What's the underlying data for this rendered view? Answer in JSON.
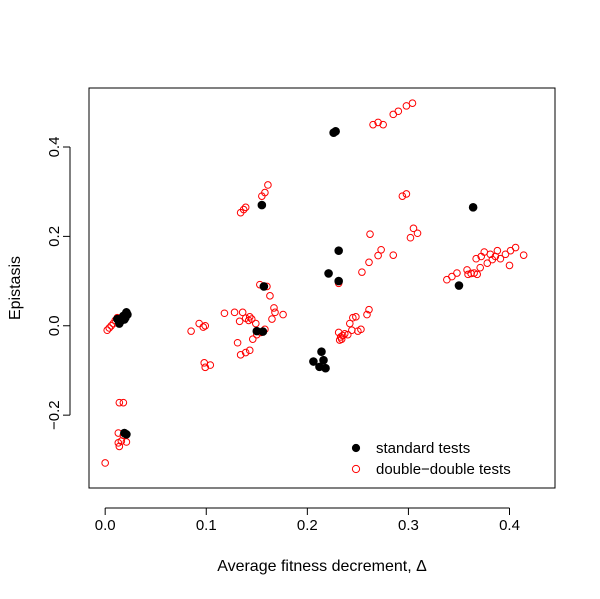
{
  "chart_data": {
    "type": "scatter",
    "title": "",
    "xlabel": "Average fitness decrement, Δ",
    "ylabel": "Epistasis",
    "xlim": [
      -0.016,
      0.445
    ],
    "ylim": [
      -0.363,
      0.532
    ],
    "xticks": [
      0.0,
      0.1,
      0.2,
      0.3,
      0.4
    ],
    "xtick_labels": [
      "0.0",
      "0.1",
      "0.2",
      "0.3",
      "0.4"
    ],
    "yticks": [
      -0.2,
      0.0,
      0.2,
      0.4
    ],
    "ytick_labels": [
      "−0.2",
      "0.0",
      "0.2",
      "0.4"
    ],
    "grid": false,
    "legend_position": "bottom-right",
    "series": [
      {
        "name": "standard tests",
        "marker": "filled-circle",
        "color": "#000000",
        "points": [
          [
            0.012,
            0.015
          ],
          [
            0.014,
            0.005
          ],
          [
            0.016,
            0.012
          ],
          [
            0.018,
            0.022
          ],
          [
            0.02,
            0.018
          ],
          [
            0.021,
            0.03
          ],
          [
            0.022,
            0.025
          ],
          [
            0.015,
            0.01
          ],
          [
            0.019,
            0.014
          ],
          [
            0.019,
            -0.24
          ],
          [
            0.021,
            -0.243
          ],
          [
            0.155,
            0.27
          ],
          [
            0.157,
            0.088
          ],
          [
            0.15,
            -0.012
          ],
          [
            0.156,
            -0.013
          ],
          [
            0.206,
            -0.08
          ],
          [
            0.212,
            -0.092
          ],
          [
            0.214,
            -0.058
          ],
          [
            0.216,
            -0.077
          ],
          [
            0.218,
            -0.095
          ],
          [
            0.221,
            0.117
          ],
          [
            0.226,
            0.432
          ],
          [
            0.228,
            0.435
          ],
          [
            0.231,
            0.168
          ],
          [
            0.231,
            0.1
          ],
          [
            0.35,
            0.09
          ],
          [
            0.364,
            0.265
          ]
        ]
      },
      {
        "name": "double−double tests",
        "marker": "open-circle",
        "color": "#ff0000",
        "points": [
          [
            0.0,
            -0.307
          ],
          [
            0.014,
            -0.172
          ],
          [
            0.018,
            -0.172
          ],
          [
            0.013,
            -0.24
          ],
          [
            0.018,
            -0.245
          ],
          [
            0.021,
            -0.26
          ],
          [
            0.013,
            -0.262
          ],
          [
            0.014,
            -0.27
          ],
          [
            0.016,
            -0.258
          ],
          [
            0.002,
            -0.01
          ],
          [
            0.004,
            -0.005
          ],
          [
            0.006,
            0.0
          ],
          [
            0.008,
            0.005
          ],
          [
            0.01,
            0.012
          ],
          [
            0.012,
            0.018
          ],
          [
            0.085,
            -0.012
          ],
          [
            0.093,
            0.005
          ],
          [
            0.097,
            -0.003
          ],
          [
            0.099,
            0.0
          ],
          [
            0.098,
            -0.083
          ],
          [
            0.099,
            -0.093
          ],
          [
            0.104,
            -0.088
          ],
          [
            0.118,
            0.028
          ],
          [
            0.128,
            0.03
          ],
          [
            0.133,
            0.01
          ],
          [
            0.136,
            0.03
          ],
          [
            0.139,
            0.017
          ],
          [
            0.142,
            0.012
          ],
          [
            0.143,
            0.02
          ],
          [
            0.145,
            0.015
          ],
          [
            0.149,
            0.005
          ],
          [
            0.131,
            -0.038
          ],
          [
            0.134,
            -0.065
          ],
          [
            0.139,
            -0.06
          ],
          [
            0.143,
            -0.055
          ],
          [
            0.146,
            -0.03
          ],
          [
            0.15,
            -0.02
          ],
          [
            0.154,
            -0.015
          ],
          [
            0.158,
            -0.008
          ],
          [
            0.153,
            0.092
          ],
          [
            0.16,
            0.088
          ],
          [
            0.163,
            0.067
          ],
          [
            0.165,
            0.015
          ],
          [
            0.167,
            0.04
          ],
          [
            0.168,
            0.03
          ],
          [
            0.176,
            0.025
          ],
          [
            0.134,
            0.253
          ],
          [
            0.137,
            0.26
          ],
          [
            0.139,
            0.265
          ],
          [
            0.155,
            0.29
          ],
          [
            0.158,
            0.298
          ],
          [
            0.161,
            0.315
          ],
          [
            0.231,
            0.095
          ],
          [
            0.231,
            -0.015
          ],
          [
            0.233,
            -0.025
          ],
          [
            0.235,
            -0.022
          ],
          [
            0.237,
            -0.018
          ],
          [
            0.232,
            -0.032
          ],
          [
            0.234,
            -0.03
          ],
          [
            0.24,
            -0.02
          ],
          [
            0.242,
            0.005
          ],
          [
            0.245,
            0.018
          ],
          [
            0.248,
            0.02
          ],
          [
            0.244,
            -0.01
          ],
          [
            0.25,
            -0.012
          ],
          [
            0.253,
            -0.008
          ],
          [
            0.254,
            0.12
          ],
          [
            0.259,
            0.025
          ],
          [
            0.261,
            0.036
          ],
          [
            0.262,
            0.205
          ],
          [
            0.261,
            0.142
          ],
          [
            0.27,
            0.157
          ],
          [
            0.273,
            0.17
          ],
          [
            0.285,
            0.158
          ],
          [
            0.265,
            0.45
          ],
          [
            0.27,
            0.455
          ],
          [
            0.275,
            0.45
          ],
          [
            0.285,
            0.473
          ],
          [
            0.29,
            0.48
          ],
          [
            0.298,
            0.492
          ],
          [
            0.304,
            0.498
          ],
          [
            0.294,
            0.29
          ],
          [
            0.298,
            0.295
          ],
          [
            0.302,
            0.197
          ],
          [
            0.305,
            0.218
          ],
          [
            0.309,
            0.207
          ],
          [
            0.338,
            0.103
          ],
          [
            0.343,
            0.11
          ],
          [
            0.348,
            0.118
          ],
          [
            0.358,
            0.125
          ],
          [
            0.359,
            0.115
          ],
          [
            0.362,
            0.117
          ],
          [
            0.365,
            0.118
          ],
          [
            0.368,
            0.115
          ],
          [
            0.367,
            0.15
          ],
          [
            0.371,
            0.13
          ],
          [
            0.372,
            0.155
          ],
          [
            0.375,
            0.165
          ],
          [
            0.378,
            0.14
          ],
          [
            0.381,
            0.16
          ],
          [
            0.383,
            0.148
          ],
          [
            0.386,
            0.155
          ],
          [
            0.388,
            0.168
          ],
          [
            0.391,
            0.15
          ],
          [
            0.396,
            0.16
          ],
          [
            0.4,
            0.135
          ],
          [
            0.401,
            0.168
          ],
          [
            0.406,
            0.175
          ],
          [
            0.414,
            0.158
          ]
        ]
      }
    ]
  }
}
